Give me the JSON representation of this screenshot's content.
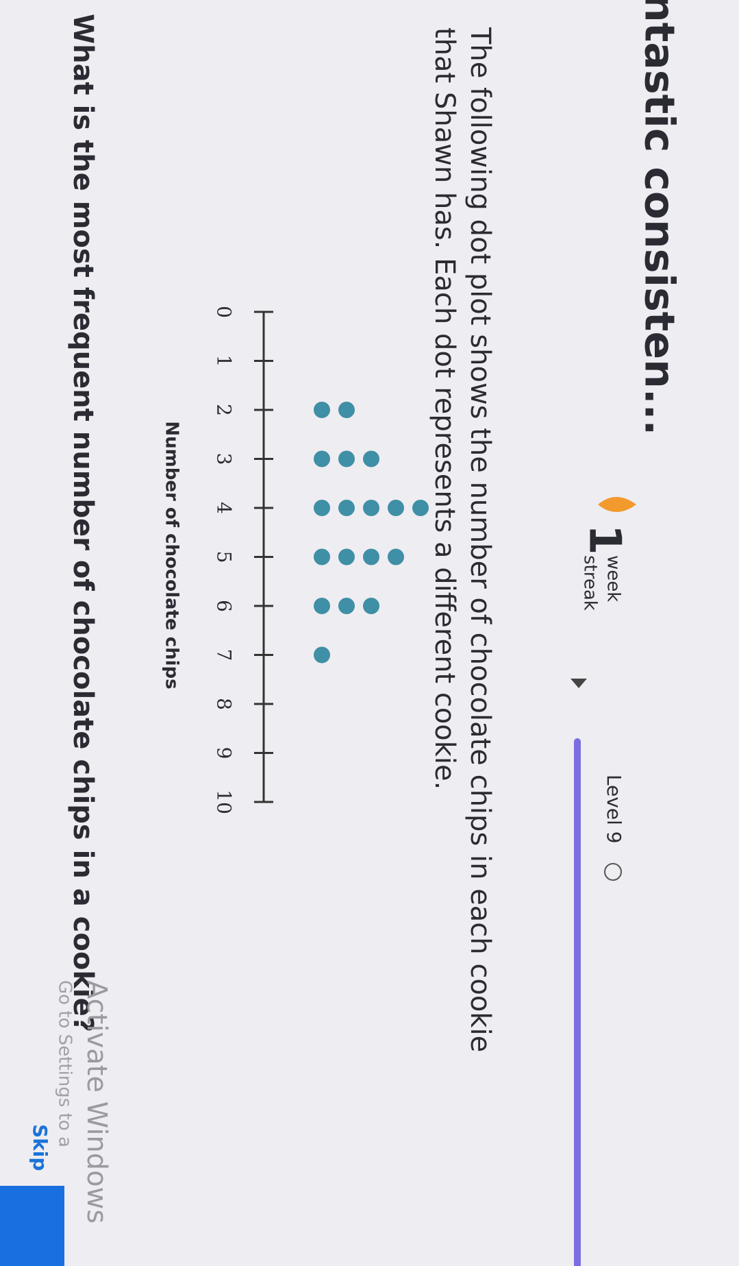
{
  "header": {
    "title": "ntastic consisten...",
    "streak_number": "1",
    "streak_unit": "week",
    "streak_label": "streak",
    "level": "Level 9"
  },
  "question": {
    "line1": "The following dot plot shows the number of chocolate chips in each cookie",
    "line2": "that Shawn has. Each dot represents a different cookie.",
    "prompt": "What is the most frequent number of chocolate chips in a cookie?"
  },
  "dot_plot": {
    "x_label": "Number of chocolate chips",
    "xlim": [
      0,
      10
    ],
    "xticks": [
      0,
      1,
      2,
      3,
      4,
      5,
      6,
      7,
      8,
      9,
      10
    ],
    "x": [
      2,
      3,
      4,
      5,
      6,
      7
    ],
    "counts": [
      2,
      3,
      5,
      4,
      3,
      1
    ],
    "color": "#3f8fa6"
  },
  "footer": {
    "skip": "Skip",
    "watermark_title": "Activate Windows",
    "watermark_text": "Go to Settings to a"
  }
}
